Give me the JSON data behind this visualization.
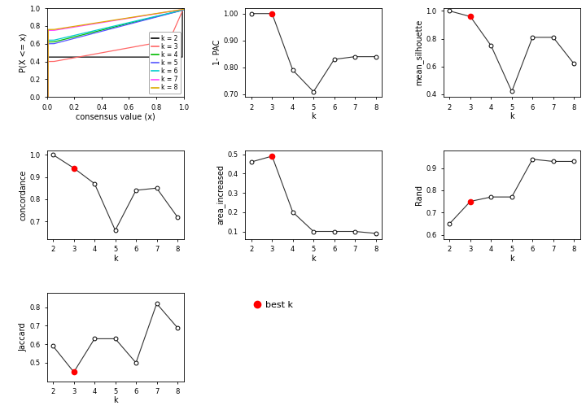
{
  "k_values": [
    2,
    3,
    4,
    5,
    6,
    7,
    8
  ],
  "best_k": 3,
  "pac_1minus": [
    1.0,
    1.0,
    0.79,
    0.71,
    0.83,
    0.84,
    0.84
  ],
  "mean_silhouette": [
    1.0,
    0.96,
    0.75,
    0.42,
    0.81,
    0.81,
    0.62
  ],
  "concordance": [
    1.0,
    0.94,
    0.87,
    0.66,
    0.84,
    0.85,
    0.72
  ],
  "area_increased": [
    0.46,
    0.49,
    0.2,
    0.1,
    0.1,
    0.1,
    0.09
  ],
  "rand": [
    0.65,
    0.75,
    0.77,
    0.77,
    0.94,
    0.93,
    0.93
  ],
  "jaccard": [
    0.59,
    0.45,
    0.63,
    0.63,
    0.5,
    0.82,
    0.69
  ],
  "ecdf_colors": [
    "#000000",
    "#FF6666",
    "#00BB00",
    "#5555FF",
    "#00CCCC",
    "#FF44FF",
    "#DDAA00"
  ],
  "ecdf_labels": [
    "k = 2",
    "k = 3",
    "k = 4",
    "k = 5",
    "k = 6",
    "k = 7",
    "k = 8"
  ],
  "bg_color": "#FFFFFF",
  "line_color": "#333333",
  "open_circle_color": "#000000",
  "best_k_color": "#FF0000"
}
